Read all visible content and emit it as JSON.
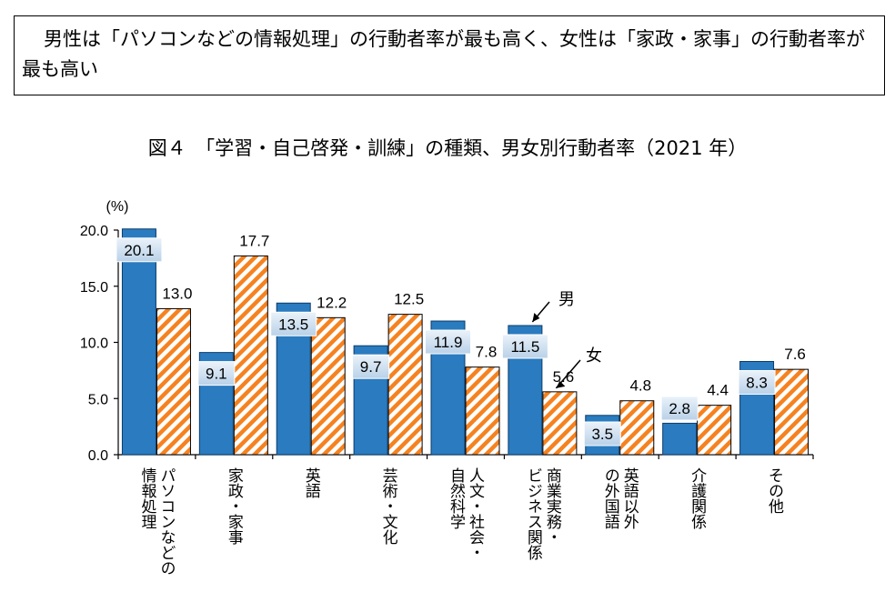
{
  "headline": "男性は「パソコンなどの情報処理」の行動者率が最も高く、女性は「家政・家事」の行動者率が最も高い",
  "chart_data": {
    "type": "bar",
    "title": "図４　「学習・自己啓発・訓練」の種類、男女別行動者率（2021 年）",
    "ylabel": "(%)",
    "ylim": [
      0,
      20
    ],
    "yticks": [
      "0.0",
      "5.0",
      "10.0",
      "15.0",
      "20.0"
    ],
    "categories": [
      [
        "パソコンなどの",
        "情報処理"
      ],
      [
        "家政・家事"
      ],
      [
        "英語"
      ],
      [
        "芸術・文化"
      ],
      [
        "人文・社会・",
        "自然科学"
      ],
      [
        "商業実務・",
        "ビジネス関係"
      ],
      [
        "英語以外",
        "の外国語"
      ],
      [
        "介護関係"
      ],
      [
        "その他"
      ]
    ],
    "series": [
      {
        "name": "男",
        "values": [
          20.1,
          9.1,
          13.5,
          9.7,
          11.9,
          11.5,
          3.5,
          2.8,
          8.3
        ],
        "labels": [
          "20.1",
          "9.1",
          "13.5",
          "9.7",
          "11.9",
          "11.5",
          "3.5",
          "2.8",
          "8.3"
        ],
        "color": "#2a7bbf"
      },
      {
        "name": "女",
        "values": [
          13.0,
          17.7,
          12.2,
          12.5,
          7.8,
          5.6,
          4.8,
          4.4,
          7.6
        ],
        "labels": [
          "13.0",
          "17.7",
          "12.2",
          "12.5",
          "7.8",
          "5.6",
          "4.8",
          "4.4",
          "7.6"
        ],
        "color": "#f58220"
      }
    ]
  }
}
